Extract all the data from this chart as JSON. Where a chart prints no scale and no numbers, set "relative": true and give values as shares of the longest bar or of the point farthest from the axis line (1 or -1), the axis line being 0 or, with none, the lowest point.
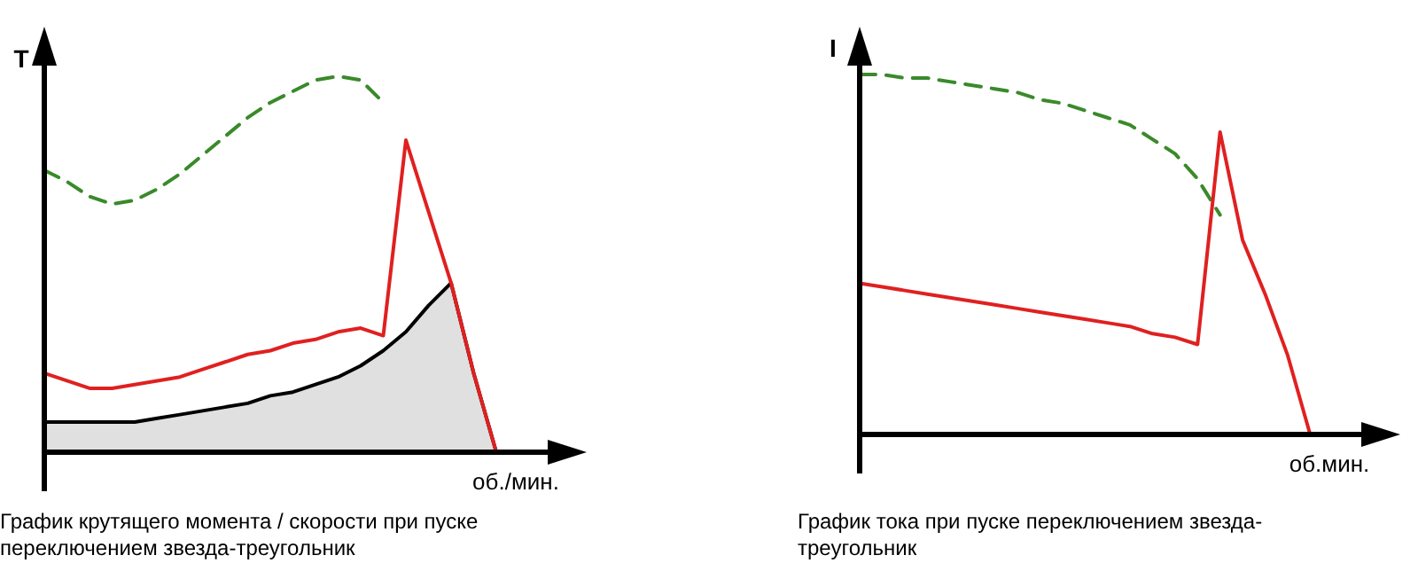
{
  "chart_data": [
    {
      "type": "line",
      "relative": true,
      "ylabel": "T",
      "xlabel": "об./мин.",
      "annotations": [
        "График крутящего момента / скорости при пуске переключением звезда-треугольник"
      ],
      "categories": [
        null,
        null,
        null,
        null,
        null,
        null,
        null,
        null,
        null,
        null,
        null,
        null,
        null,
        null,
        null,
        null,
        null,
        null,
        null,
        null,
        null,
        null,
        null,
        null,
        null
      ],
      "series": [
        {
          "type": "area",
          "color": "#000000",
          "values": [
            0.08,
            0.08,
            0.08,
            0.08,
            0.08,
            0.09,
            0.1,
            0.11,
            0.12,
            0.13,
            0.15,
            0.16,
            0.18,
            0.2,
            0.23,
            0.27,
            0.32,
            0.39,
            0.45,
            0.21,
            0,
            null,
            null,
            null,
            null
          ]
        },
        {
          "color": "#3a8a2a",
          "line_style": "dashed",
          "values": [
            0.75,
            0.72,
            0.68,
            0.66,
            0.67,
            0.7,
            0.74,
            0.79,
            0.84,
            0.89,
            0.93,
            0.96,
            0.99,
            1,
            0.99,
            0.93,
            null,
            null,
            null,
            null,
            null,
            null,
            null,
            null,
            null
          ]
        },
        {
          "color": "#e02020",
          "values": [
            0.21,
            0.19,
            0.17,
            0.17,
            0.18,
            0.19,
            0.2,
            0.22,
            0.24,
            0.26,
            0.27,
            0.29,
            0.3,
            0.32,
            0.33,
            0.31,
            0.83,
            0.64,
            0.45,
            0.21,
            0,
            null,
            null,
            null,
            null
          ]
        }
      ]
    },
    {
      "type": "line",
      "relative": true,
      "ylabel": "I",
      "xlabel": "об.мин.",
      "annotations": [
        "График тока при пуске переключением звезда-треугольник"
      ],
      "categories": [
        null,
        null,
        null,
        null,
        null,
        null,
        null,
        null,
        null,
        null,
        null,
        null,
        null,
        null,
        null,
        null,
        null,
        null,
        null,
        null,
        null,
        null,
        null,
        null,
        null
      ],
      "series": [
        {
          "color": "#3a8a2a",
          "line_style": "dashed",
          "values": [
            1,
            1,
            0.99,
            0.99,
            0.98,
            0.97,
            0.96,
            0.95,
            0.93,
            0.92,
            0.9,
            0.88,
            0.86,
            0.82,
            0.78,
            0.71,
            0.61,
            null,
            null,
            null,
            null,
            null,
            null,
            null,
            null
          ]
        },
        {
          "color": "#e02020",
          "values": [
            0.42,
            0.41,
            0.4,
            0.39,
            0.38,
            0.37,
            0.36,
            0.35,
            0.34,
            0.33,
            0.32,
            0.31,
            0.3,
            0.28,
            0.27,
            0.25,
            0.84,
            0.54,
            0.39,
            0.22,
            0,
            null,
            null,
            null,
            null
          ]
        }
      ]
    }
  ]
}
